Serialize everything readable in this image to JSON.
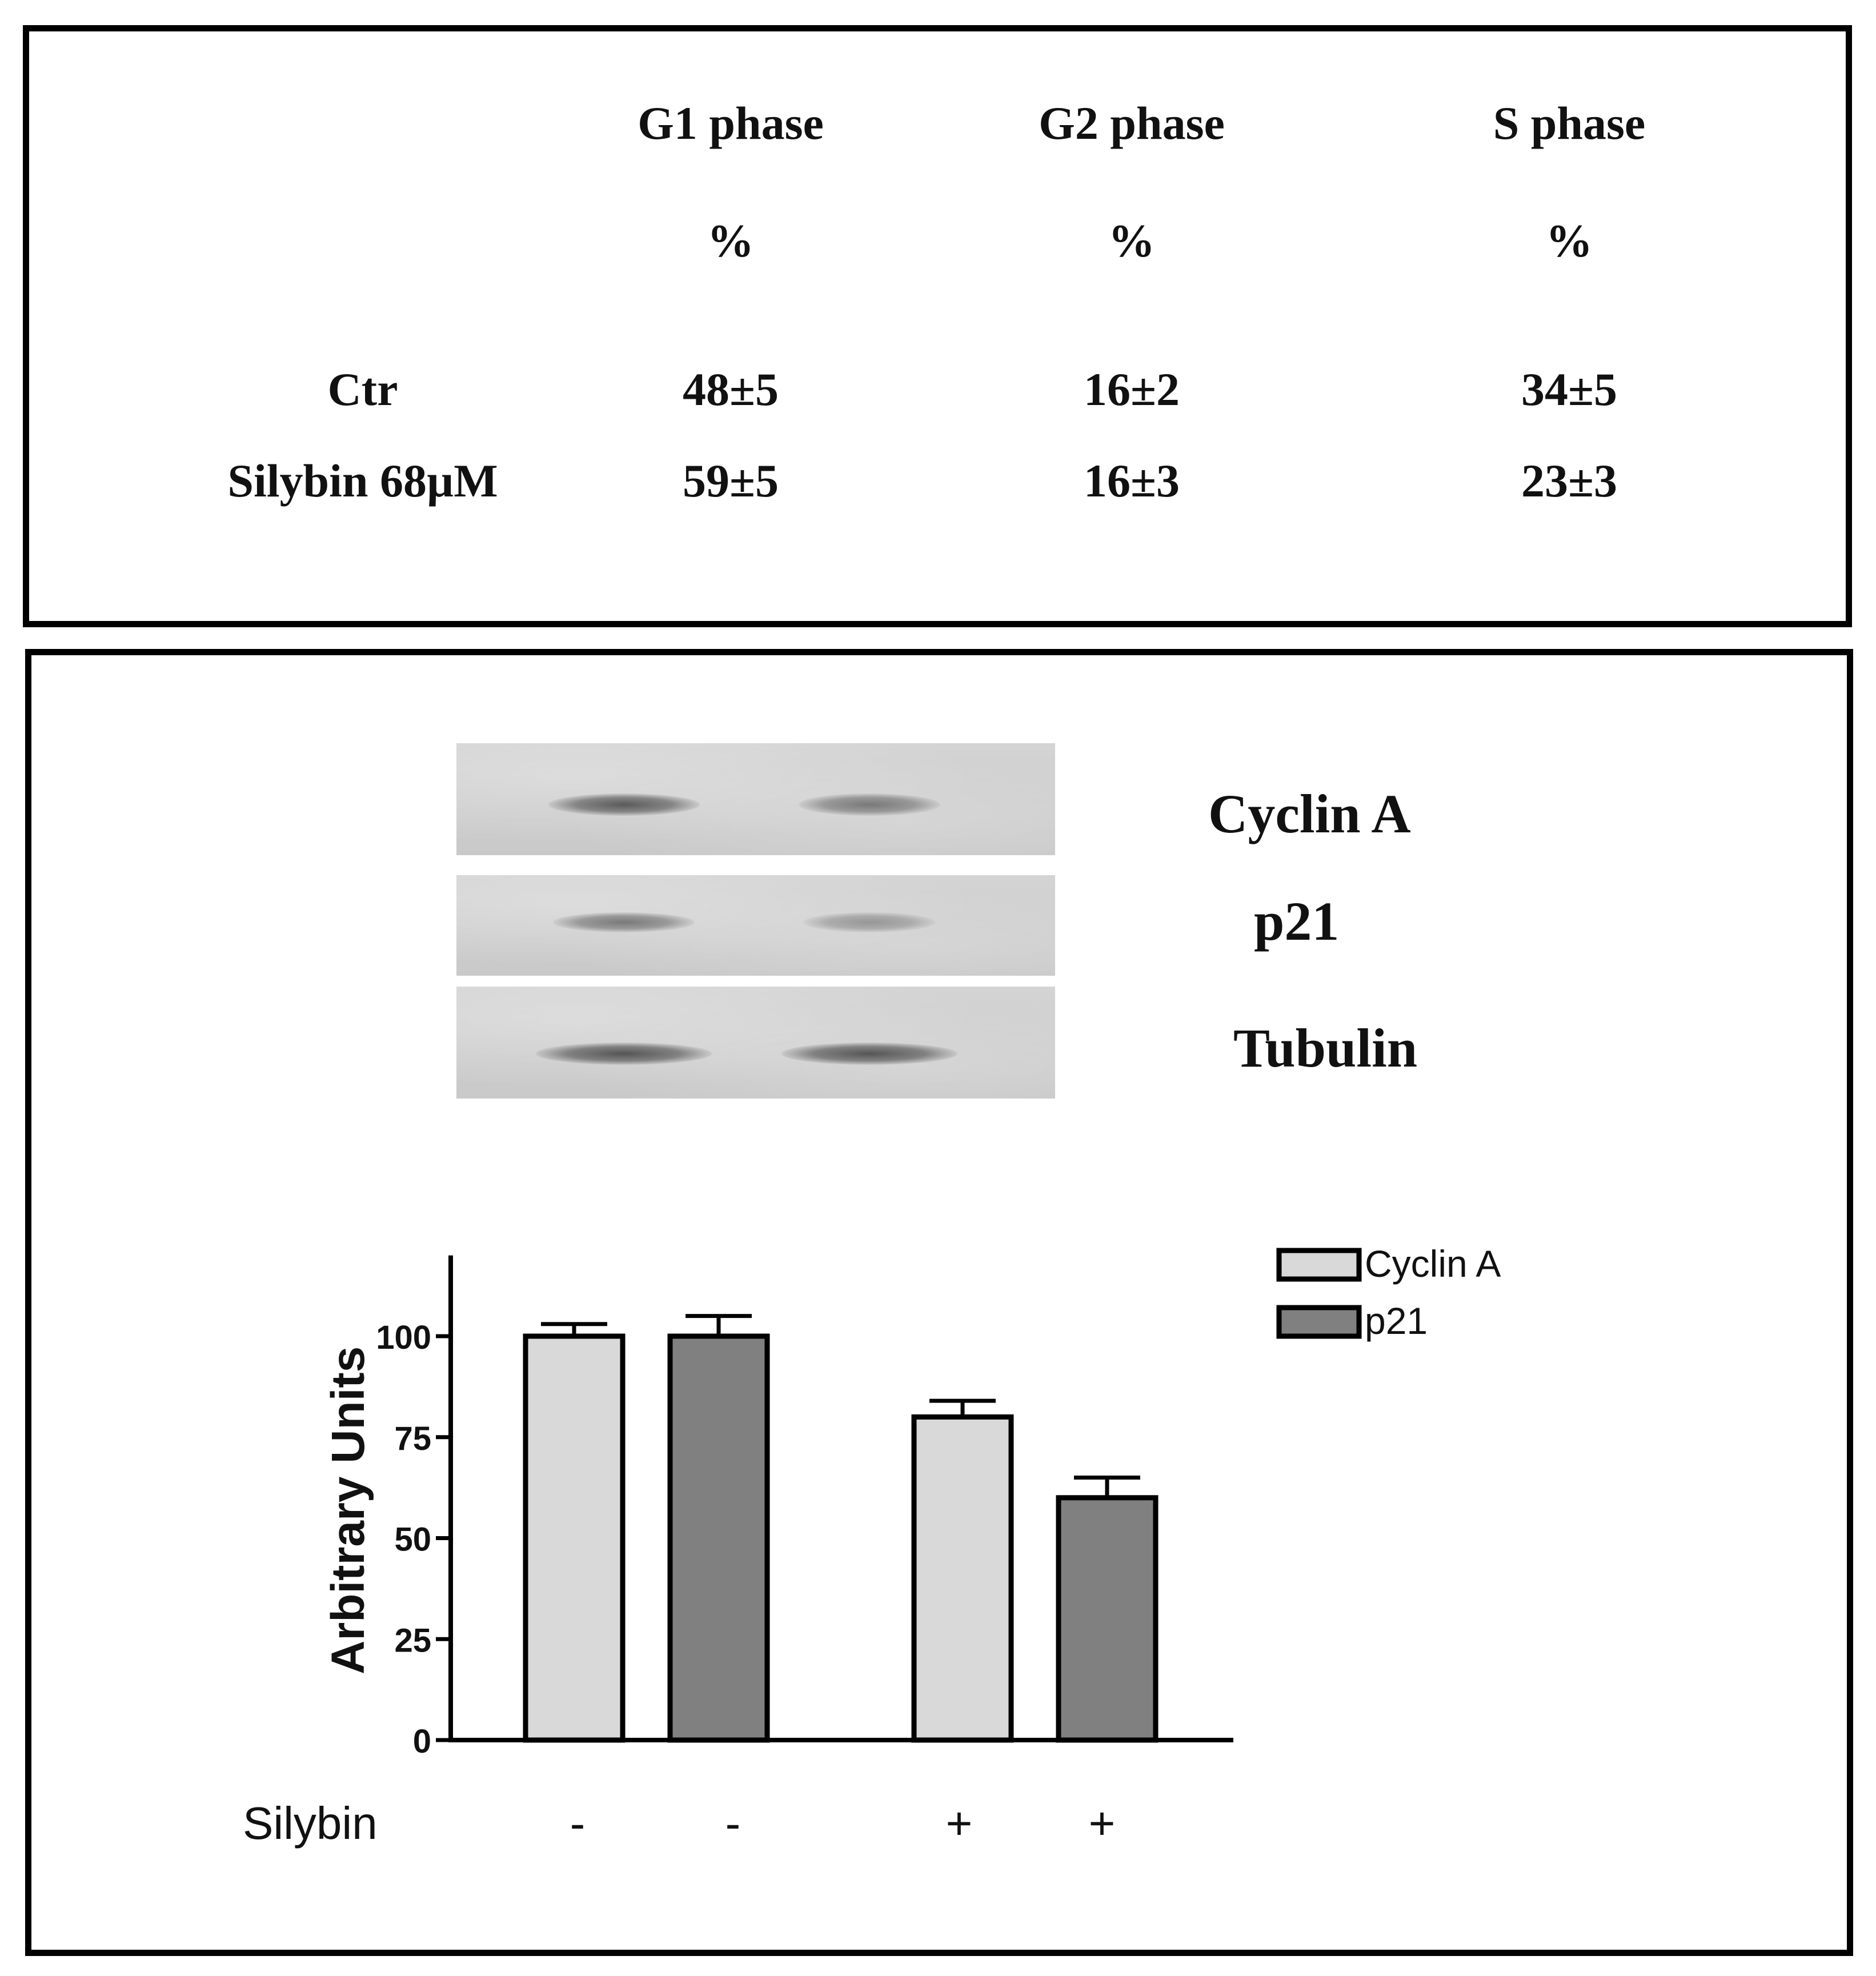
{
  "table": {
    "columns": [
      {
        "name": "G1 phase",
        "unit": "%"
      },
      {
        "name": "G2 phase",
        "unit": "%"
      },
      {
        "name": "S phase",
        "unit": "%"
      }
    ],
    "rows": [
      {
        "label": "Ctr",
        "values": [
          "48±5",
          "16±2",
          "34±5"
        ]
      },
      {
        "label": "Silybin 68µM",
        "values": [
          "59±5",
          "16±3",
          "23±3"
        ]
      }
    ]
  },
  "blot": {
    "labels": [
      "Cyclin A",
      "p21",
      "Tubulin"
    ],
    "lanes": 2,
    "band_intensity": [
      [
        0.85,
        0.55
      ],
      [
        0.55,
        0.25
      ],
      [
        0.9,
        0.9
      ]
    ]
  },
  "chart_data": {
    "type": "bar",
    "categories": [
      "-",
      "-",
      "+",
      "+"
    ],
    "xlabel": "Silybin",
    "ylabel": "Arbitrary Units",
    "ylim": [
      0,
      120
    ],
    "yticks": [
      0,
      25,
      50,
      75,
      100
    ],
    "legend": {
      "placement": "top-right",
      "entries": [
        "Cyclin A",
        "p21"
      ]
    },
    "bars": [
      {
        "series": "Cyclin A",
        "value": 100,
        "error": 3
      },
      {
        "series": "p21",
        "value": 100,
        "error": 5
      },
      {
        "series": "Cyclin A",
        "value": 80,
        "error": 4
      },
      {
        "series": "p21",
        "value": 60,
        "error": 5
      }
    ],
    "colors": {
      "Cyclin A": "#d8d9d8",
      "p21": "#808080"
    },
    "grid": false
  }
}
